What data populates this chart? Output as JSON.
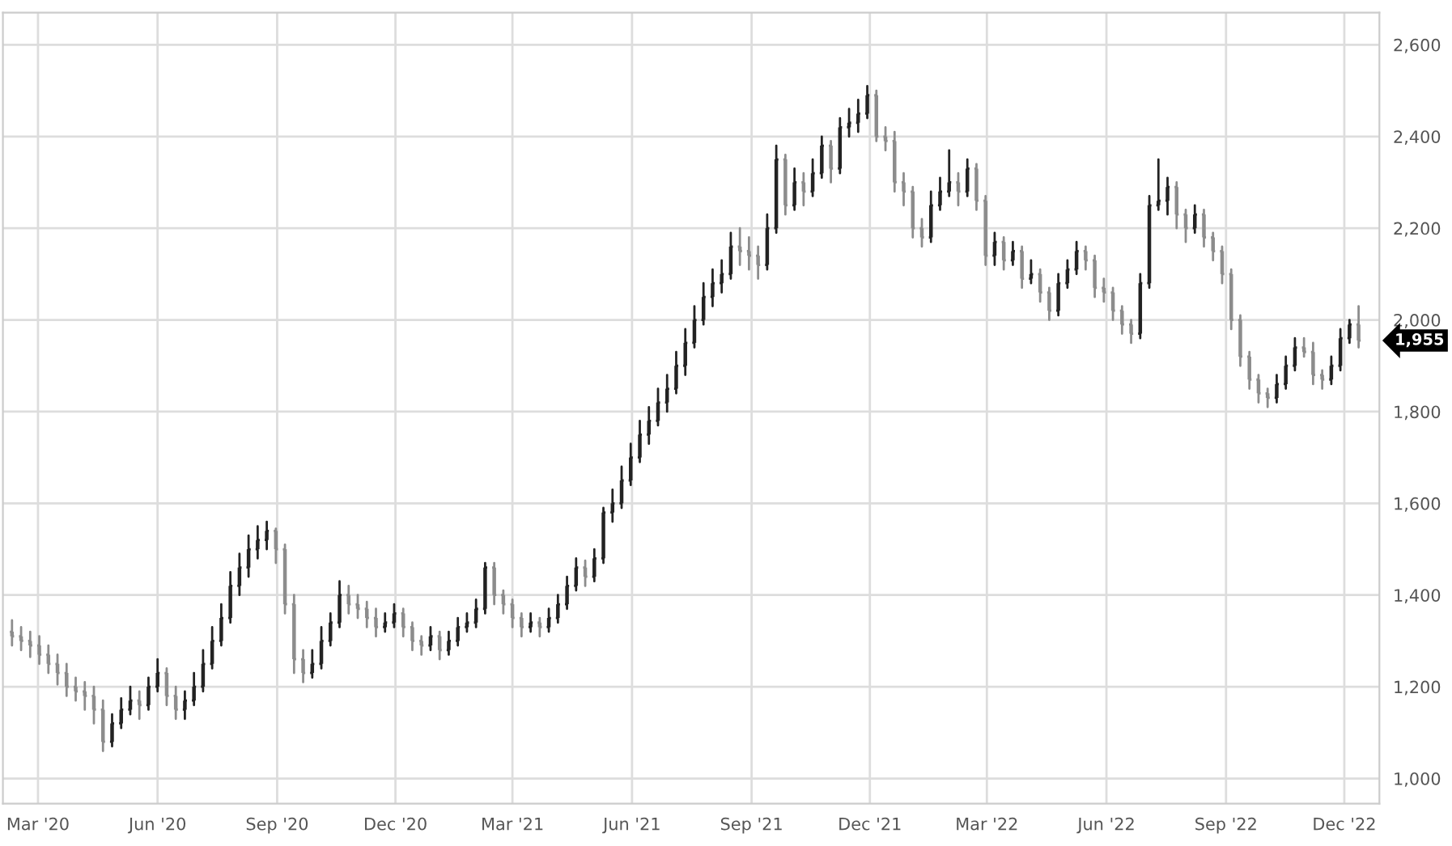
{
  "chart_data": {
    "type": "candlestick",
    "grid": true,
    "colors": [
      "#8c8c8c",
      "#8c8c8c",
      "#8c8c8c",
      "#8c8c8c",
      "#8c8c8c",
      "#8c8c8c",
      "#8c8c8c",
      "#8c8c8c",
      "#8c8c8c",
      "#8c8c8c",
      "#8c8c8c",
      "#222222",
      "#222222",
      "#222222",
      "#8c8c8c",
      "#222222",
      "#222222",
      "#8c8c8c",
      "#8c8c8c",
      "#222222",
      "#222222",
      "#222222",
      "#222222",
      "#222222",
      "#222222",
      "#222222",
      "#222222",
      "#222222",
      "#222222",
      "#8c8c8c",
      "#8c8c8c",
      "#8c8c8c",
      "#8c8c8c",
      "#222222",
      "#222222",
      "#222222",
      "#222222",
      "#8c8c8c",
      "#8c8c8c",
      "#8c8c8c",
      "#8c8c8c",
      "#222222",
      "#222222",
      "#8c8c8c",
      "#8c8c8c",
      "#8c8c8c",
      "#222222",
      "#8c8c8c",
      "#222222",
      "#222222",
      "#222222",
      "#222222",
      "#222222",
      "#8c8c8c",
      "#8c8c8c",
      "#8c8c8c",
      "#8c8c8c",
      "#222222",
      "#8c8c8c",
      "#222222",
      "#222222",
      "#222222",
      "#222222",
      "#8c8c8c",
      "#222222",
      "#222222",
      "#222222",
      "#222222",
      "#222222",
      "#222222",
      "#222222",
      "#222222",
      "#222222",
      "#222222",
      "#222222",
      "#222222",
      "#222222",
      "#222222",
      "#222222",
      "#222222",
      "#8c8c8c",
      "#8c8c8c",
      "#8c8c8c",
      "#222222",
      "#222222",
      "#8c8c8c",
      "#222222",
      "#8c8c8c",
      "#222222",
      "#222222",
      "#8c8c8c",
      "#222222",
      "#222222",
      "#222222",
      "#222222",
      "#8c8c8c",
      "#8c8c8c",
      "#8c8c8c",
      "#8c8c8c",
      "#8c8c8c",
      "#8c8c8c",
      "#222222",
      "#222222",
      "#222222",
      "#8c8c8c",
      "#222222",
      "#8c8c8c",
      "#8c8c8c",
      "#222222",
      "#8c8c8c",
      "#222222",
      "#8c8c8c",
      "#222222",
      "#8c8c8c",
      "#8c8c8c",
      "#222222",
      "#222222",
      "#222222",
      "#8c8c8c",
      "#8c8c8c",
      "#8c8c8c",
      "#8c8c8c",
      "#8c8c8c",
      "#8c8c8c",
      "#222222",
      "#222222",
      "#222222",
      "#222222",
      "#8c8c8c",
      "#8c8c8c",
      "#222222",
      "#8c8c8c",
      "#8c8c8c",
      "#8c8c8c",
      "#8c8c8c",
      "#8c8c8c",
      "#8c8c8c",
      "#8c8c8c",
      "#8c8c8c",
      "#222222",
      "#222222",
      "#222222",
      "#8c8c8c",
      "#8c8c8c",
      "#8c8c8c",
      "#222222",
      "#222222",
      "#222222",
      "#8c8c8c"
    ],
    "x": [
      "2020-02-10",
      "2020-02-17",
      "2020-02-24",
      "2020-03-02",
      "2020-03-09",
      "2020-03-16",
      "2020-03-23",
      "2020-03-30",
      "2020-04-06",
      "2020-04-13",
      "2020-04-20",
      "2020-04-27",
      "2020-05-04",
      "2020-05-11",
      "2020-05-18",
      "2020-05-25",
      "2020-06-01",
      "2020-06-08",
      "2020-06-15",
      "2020-06-22",
      "2020-06-29",
      "2020-07-06",
      "2020-07-13",
      "2020-07-20",
      "2020-07-27",
      "2020-08-03",
      "2020-08-10",
      "2020-08-17",
      "2020-08-24",
      "2020-08-31",
      "2020-09-07",
      "2020-09-14",
      "2020-09-21",
      "2020-09-28",
      "2020-10-05",
      "2020-10-12",
      "2020-10-19",
      "2020-10-26",
      "2020-11-02",
      "2020-11-09",
      "2020-11-16",
      "2020-11-23",
      "2020-11-30",
      "2020-12-07",
      "2020-12-14",
      "2020-12-21",
      "2020-12-28",
      "2021-01-04",
      "2021-01-11",
      "2021-01-18",
      "2021-01-25",
      "2021-02-01",
      "2021-02-08",
      "2021-02-15",
      "2021-02-22",
      "2021-03-01",
      "2021-03-08",
      "2021-03-15",
      "2021-03-22",
      "2021-03-29",
      "2021-04-05",
      "2021-04-12",
      "2021-04-19",
      "2021-04-26",
      "2021-05-03",
      "2021-05-10",
      "2021-05-17",
      "2021-05-24",
      "2021-05-31",
      "2021-06-07",
      "2021-06-14",
      "2021-06-21",
      "2021-06-28",
      "2021-07-05",
      "2021-07-12",
      "2021-07-19",
      "2021-07-26",
      "2021-08-02",
      "2021-08-09",
      "2021-08-16",
      "2021-08-23",
      "2021-08-30",
      "2021-09-06",
      "2021-09-13",
      "2021-09-20",
      "2021-09-27",
      "2021-10-04",
      "2021-10-11",
      "2021-10-18",
      "2021-10-25",
      "2021-11-01",
      "2021-11-08",
      "2021-11-15",
      "2021-11-22",
      "2021-11-29",
      "2021-12-06",
      "2021-12-13",
      "2021-12-20",
      "2021-12-27",
      "2022-01-03",
      "2022-01-10",
      "2022-01-17",
      "2022-01-24",
      "2022-01-31",
      "2022-02-07",
      "2022-02-14",
      "2022-02-21",
      "2022-02-28",
      "2022-03-07",
      "2022-03-14",
      "2022-03-21",
      "2022-03-28",
      "2022-04-04",
      "2022-04-11",
      "2022-04-18",
      "2022-04-25",
      "2022-05-02",
      "2022-05-09",
      "2022-05-16",
      "2022-05-23",
      "2022-05-30",
      "2022-06-06",
      "2022-06-13",
      "2022-06-20",
      "2022-06-27",
      "2022-07-04",
      "2022-07-11",
      "2022-07-18",
      "2022-07-25",
      "2022-08-01",
      "2022-08-08",
      "2022-08-15",
      "2022-08-22",
      "2022-08-29",
      "2022-09-05",
      "2022-09-12",
      "2022-09-19",
      "2022-09-26",
      "2022-10-03",
      "2022-10-10",
      "2022-10-17",
      "2022-10-24",
      "2022-10-31",
      "2022-11-07",
      "2022-11-14",
      "2022-11-21",
      "2022-11-28",
      "2022-12-05",
      "2022-12-12"
    ],
    "ohlc": [
      [
        1320,
        1345,
        1290,
        1310
      ],
      [
        1310,
        1330,
        1280,
        1300
      ],
      [
        1300,
        1320,
        1265,
        1290
      ],
      [
        1290,
        1310,
        1250,
        1270
      ],
      [
        1270,
        1290,
        1230,
        1250
      ],
      [
        1250,
        1270,
        1205,
        1230
      ],
      [
        1230,
        1250,
        1180,
        1200
      ],
      [
        1200,
        1220,
        1170,
        1190
      ],
      [
        1190,
        1210,
        1150,
        1180
      ],
      [
        1180,
        1200,
        1120,
        1150
      ],
      [
        1150,
        1170,
        1060,
        1080
      ],
      [
        1080,
        1140,
        1070,
        1120
      ],
      [
        1120,
        1175,
        1110,
        1150
      ],
      [
        1150,
        1200,
        1140,
        1170
      ],
      [
        1170,
        1190,
        1130,
        1160
      ],
      [
        1160,
        1220,
        1150,
        1200
      ],
      [
        1200,
        1260,
        1190,
        1230
      ],
      [
        1230,
        1240,
        1160,
        1180
      ],
      [
        1180,
        1200,
        1130,
        1150
      ],
      [
        1150,
        1190,
        1130,
        1170
      ],
      [
        1170,
        1230,
        1160,
        1200
      ],
      [
        1200,
        1280,
        1190,
        1250
      ],
      [
        1250,
        1330,
        1240,
        1300
      ],
      [
        1300,
        1380,
        1290,
        1350
      ],
      [
        1350,
        1450,
        1340,
        1420
      ],
      [
        1420,
        1490,
        1400,
        1460
      ],
      [
        1460,
        1530,
        1440,
        1500
      ],
      [
        1500,
        1550,
        1480,
        1520
      ],
      [
        1520,
        1560,
        1500,
        1540
      ],
      [
        1540,
        1545,
        1470,
        1500
      ],
      [
        1500,
        1510,
        1360,
        1380
      ],
      [
        1380,
        1400,
        1230,
        1260
      ],
      [
        1260,
        1280,
        1210,
        1230
      ],
      [
        1230,
        1280,
        1220,
        1250
      ],
      [
        1250,
        1330,
        1240,
        1300
      ],
      [
        1300,
        1360,
        1290,
        1340
      ],
      [
        1340,
        1430,
        1330,
        1400
      ],
      [
        1400,
        1420,
        1360,
        1380
      ],
      [
        1380,
        1400,
        1350,
        1370
      ],
      [
        1370,
        1385,
        1330,
        1350
      ],
      [
        1350,
        1370,
        1310,
        1330
      ],
      [
        1330,
        1360,
        1320,
        1340
      ],
      [
        1340,
        1380,
        1330,
        1360
      ],
      [
        1360,
        1370,
        1310,
        1330
      ],
      [
        1330,
        1340,
        1280,
        1300
      ],
      [
        1300,
        1310,
        1270,
        1290
      ],
      [
        1290,
        1330,
        1280,
        1310
      ],
      [
        1310,
        1320,
        1260,
        1280
      ],
      [
        1280,
        1320,
        1270,
        1300
      ],
      [
        1300,
        1350,
        1290,
        1330
      ],
      [
        1330,
        1360,
        1320,
        1340
      ],
      [
        1340,
        1390,
        1330,
        1370
      ],
      [
        1370,
        1470,
        1360,
        1460
      ],
      [
        1460,
        1470,
        1380,
        1400
      ],
      [
        1400,
        1410,
        1360,
        1380
      ],
      [
        1380,
        1390,
        1330,
        1350
      ],
      [
        1350,
        1360,
        1310,
        1330
      ],
      [
        1330,
        1360,
        1320,
        1340
      ],
      [
        1340,
        1350,
        1310,
        1330
      ],
      [
        1330,
        1370,
        1320,
        1350
      ],
      [
        1350,
        1400,
        1340,
        1380
      ],
      [
        1380,
        1440,
        1370,
        1420
      ],
      [
        1420,
        1480,
        1410,
        1460
      ],
      [
        1460,
        1475,
        1420,
        1440
      ],
      [
        1440,
        1500,
        1430,
        1480
      ],
      [
        1480,
        1590,
        1470,
        1580
      ],
      [
        1580,
        1630,
        1560,
        1600
      ],
      [
        1600,
        1680,
        1590,
        1650
      ],
      [
        1650,
        1730,
        1640,
        1700
      ],
      [
        1700,
        1780,
        1690,
        1750
      ],
      [
        1750,
        1810,
        1730,
        1780
      ],
      [
        1780,
        1850,
        1770,
        1820
      ],
      [
        1820,
        1880,
        1800,
        1850
      ],
      [
        1850,
        1930,
        1840,
        1900
      ],
      [
        1900,
        1980,
        1880,
        1950
      ],
      [
        1950,
        2030,
        1940,
        2000
      ],
      [
        2000,
        2080,
        1990,
        2050
      ],
      [
        2050,
        2110,
        2030,
        2080
      ],
      [
        2080,
        2130,
        2060,
        2100
      ],
      [
        2100,
        2190,
        2090,
        2160
      ],
      [
        2160,
        2200,
        2120,
        2150
      ],
      [
        2150,
        2180,
        2110,
        2140
      ],
      [
        2140,
        2160,
        2090,
        2120
      ],
      [
        2120,
        2230,
        2110,
        2200
      ],
      [
        2200,
        2380,
        2190,
        2350
      ],
      [
        2350,
        2360,
        2230,
        2250
      ],
      [
        2250,
        2330,
        2240,
        2300
      ],
      [
        2300,
        2320,
        2250,
        2280
      ],
      [
        2280,
        2350,
        2270,
        2320
      ],
      [
        2320,
        2400,
        2310,
        2380
      ],
      [
        2380,
        2390,
        2300,
        2330
      ],
      [
        2330,
        2440,
        2320,
        2420
      ],
      [
        2420,
        2460,
        2400,
        2430
      ],
      [
        2430,
        2480,
        2410,
        2450
      ],
      [
        2450,
        2510,
        2440,
        2490
      ],
      [
        2490,
        2500,
        2390,
        2400
      ],
      [
        2400,
        2420,
        2370,
        2390
      ],
      [
        2390,
        2410,
        2280,
        2300
      ],
      [
        2300,
        2320,
        2250,
        2280
      ],
      [
        2280,
        2290,
        2180,
        2200
      ],
      [
        2200,
        2220,
        2160,
        2180
      ],
      [
        2180,
        2280,
        2170,
        2250
      ],
      [
        2250,
        2310,
        2240,
        2280
      ],
      [
        2280,
        2370,
        2270,
        2300
      ],
      [
        2300,
        2320,
        2250,
        2280
      ],
      [
        2280,
        2350,
        2270,
        2330
      ],
      [
        2330,
        2340,
        2240,
        2260
      ],
      [
        2260,
        2270,
        2120,
        2140
      ],
      [
        2140,
        2190,
        2120,
        2170
      ],
      [
        2170,
        2180,
        2110,
        2130
      ],
      [
        2130,
        2170,
        2120,
        2150
      ],
      [
        2150,
        2160,
        2070,
        2090
      ],
      [
        2090,
        2130,
        2080,
        2100
      ],
      [
        2100,
        2110,
        2040,
        2060
      ],
      [
        2060,
        2070,
        2000,
        2020
      ],
      [
        2020,
        2100,
        2010,
        2080
      ],
      [
        2080,
        2130,
        2070,
        2110
      ],
      [
        2110,
        2170,
        2100,
        2150
      ],
      [
        2150,
        2160,
        2110,
        2130
      ],
      [
        2130,
        2140,
        2050,
        2070
      ],
      [
        2070,
        2090,
        2040,
        2060
      ],
      [
        2060,
        2070,
        2000,
        2020
      ],
      [
        2020,
        2030,
        1970,
        1990
      ],
      [
        1990,
        2000,
        1950,
        1970
      ],
      [
        1970,
        2100,
        1960,
        2080
      ],
      [
        2080,
        2270,
        2070,
        2250
      ],
      [
        2250,
        2350,
        2240,
        2260
      ],
      [
        2260,
        2310,
        2230,
        2290
      ],
      [
        2290,
        2300,
        2200,
        2230
      ],
      [
        2230,
        2240,
        2170,
        2200
      ],
      [
        2200,
        2250,
        2190,
        2230
      ],
      [
        2230,
        2240,
        2160,
        2180
      ],
      [
        2180,
        2190,
        2130,
        2150
      ],
      [
        2150,
        2160,
        2080,
        2100
      ],
      [
        2100,
        2110,
        1980,
        2000
      ],
      [
        2000,
        2010,
        1900,
        1920
      ],
      [
        1920,
        1930,
        1850,
        1870
      ],
      [
        1870,
        1880,
        1820,
        1840
      ],
      [
        1840,
        1850,
        1810,
        1830
      ],
      [
        1830,
        1880,
        1820,
        1860
      ],
      [
        1860,
        1920,
        1850,
        1900
      ],
      [
        1900,
        1960,
        1890,
        1940
      ],
      [
        1940,
        1960,
        1920,
        1930
      ],
      [
        1930,
        1950,
        1860,
        1880
      ],
      [
        1880,
        1890,
        1850,
        1870
      ],
      [
        1870,
        1920,
        1860,
        1900
      ],
      [
        1900,
        1980,
        1890,
        1960
      ],
      [
        1960,
        2000,
        1950,
        1990
      ],
      [
        1990,
        2030,
        1940,
        1955
      ]
    ],
    "xlim": [
      "2020-02-03",
      "2022-12-28"
    ],
    "xticks": [
      {
        "value": "2020-03-01",
        "label": "Mar '20"
      },
      {
        "value": "2020-06-01",
        "label": "Jun '20"
      },
      {
        "value": "2020-09-01",
        "label": "Sep '20"
      },
      {
        "value": "2020-12-01",
        "label": "Dec '20"
      },
      {
        "value": "2021-03-01",
        "label": "Mar '21"
      },
      {
        "value": "2021-06-01",
        "label": "Jun '21"
      },
      {
        "value": "2021-09-01",
        "label": "Sep '21"
      },
      {
        "value": "2021-12-01",
        "label": "Dec '21"
      },
      {
        "value": "2022-03-01",
        "label": "Mar '22"
      },
      {
        "value": "2022-06-01",
        "label": "Jun '22"
      },
      {
        "value": "2022-09-01",
        "label": "Sep '22"
      },
      {
        "value": "2022-12-01",
        "label": "Dec '22"
      }
    ],
    "ylim": [
      945,
      2670
    ],
    "yticks": [
      {
        "value": 1000,
        "label": "1,000"
      },
      {
        "value": 1200,
        "label": "1,200"
      },
      {
        "value": 1400,
        "label": "1,400"
      },
      {
        "value": 1600,
        "label": "1,600"
      },
      {
        "value": 1800,
        "label": "1,800"
      },
      {
        "value": 2000,
        "label": "2,000"
      },
      {
        "value": 2200,
        "label": "2,200"
      },
      {
        "value": 2400,
        "label": "2,400"
      },
      {
        "value": 2600,
        "label": "2,600"
      }
    ],
    "annotations": [
      {
        "text": "1,955",
        "x": "2022-12-12",
        "y": 1955
      }
    ]
  }
}
